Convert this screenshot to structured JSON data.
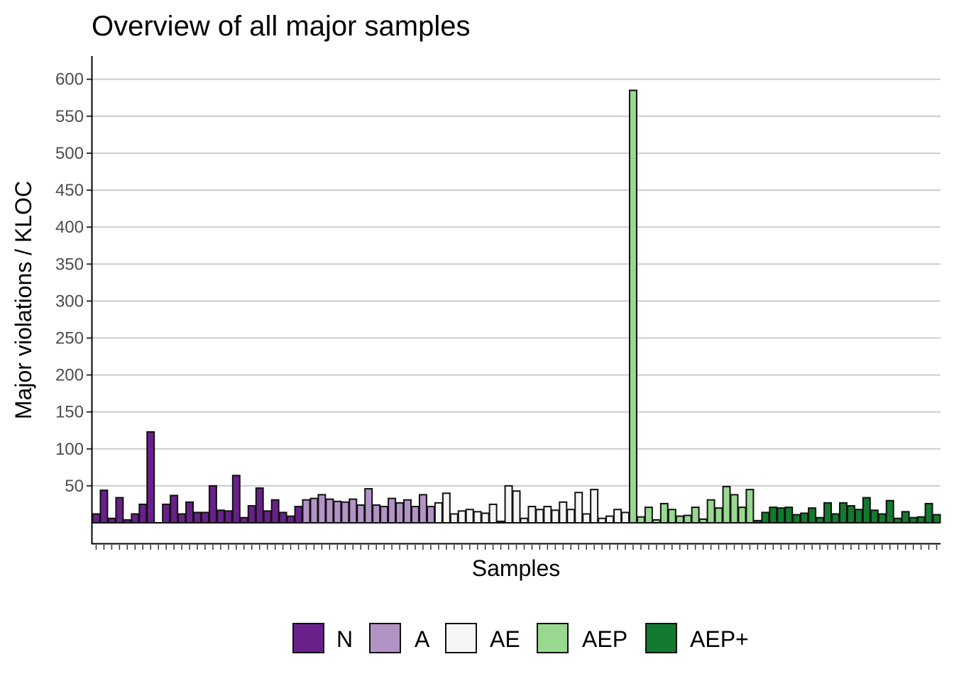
{
  "chart_data": {
    "type": "bar",
    "title": "Overview of all major samples",
    "xlabel": "Samples",
    "ylabel": "Major violations / KLOC",
    "ylim": [
      -30,
      630
    ],
    "yticks": [
      50,
      100,
      150,
      200,
      250,
      300,
      350,
      400,
      450,
      500,
      550,
      600
    ],
    "grid": "horizontal",
    "legend_position": "bottom",
    "legend": [
      {
        "name": "N",
        "color": "#68208a"
      },
      {
        "name": "A",
        "color": "#b293c6"
      },
      {
        "name": "AE",
        "color": "#f5f5f5"
      },
      {
        "name": "AEP",
        "color": "#98d98f"
      },
      {
        "name": "AEP+",
        "color": "#127a2e"
      }
    ],
    "series": [
      {
        "name": "N",
        "values": [
          12,
          44,
          6,
          34,
          4,
          12,
          25,
          123,
          0,
          25,
          37,
          12,
          28,
          14,
          14,
          50,
          17,
          16,
          64,
          7,
          23,
          47,
          16,
          31,
          14,
          9,
          22
        ]
      },
      {
        "name": "A",
        "values": [
          31,
          33,
          38,
          32,
          29,
          28,
          32,
          24,
          46,
          24,
          22,
          33,
          27,
          31,
          22,
          38,
          22
        ]
      },
      {
        "name": "AE",
        "values": [
          27,
          40,
          12,
          16,
          18,
          15,
          13,
          25,
          2,
          50,
          43,
          6,
          22,
          18,
          22,
          17,
          28,
          18,
          41,
          12,
          45,
          6,
          9,
          18,
          14
        ]
      },
      {
        "name": "AEP",
        "values": [
          585,
          8,
          21,
          4,
          26,
          18,
          9,
          10,
          21,
          5,
          31,
          20,
          49,
          38,
          21,
          45
        ]
      },
      {
        "name": "AEP+",
        "values": [
          3,
          14,
          21,
          20,
          21,
          11,
          13,
          20,
          7,
          27,
          12,
          27,
          23,
          18,
          34,
          17,
          12,
          30,
          6,
          15,
          7,
          8,
          26,
          11
        ]
      }
    ]
  }
}
